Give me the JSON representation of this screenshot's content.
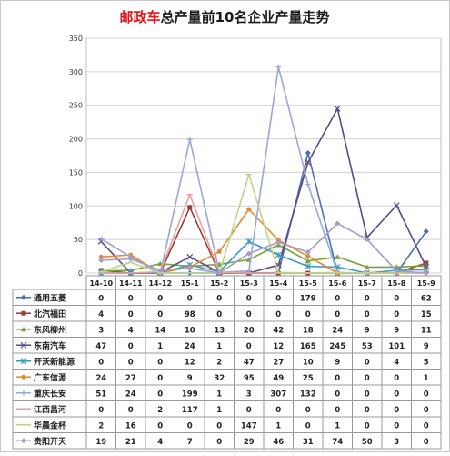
{
  "chart_data": {
    "type": "line",
    "title_part1": "邮政车",
    "title_part2": "总产量前10名企业产量走势",
    "title_part1_color": "#e4141b",
    "title_part2_color": "#1a1a1a",
    "ylim": [
      0,
      350
    ],
    "yticks": [
      0,
      50,
      100,
      150,
      200,
      250,
      300,
      350
    ],
    "grid": true,
    "categories": [
      "14-10",
      "14-11",
      "14-12",
      "15-1",
      "15-2",
      "15-3",
      "15-4",
      "15-5",
      "15-6",
      "15-7",
      "15-8",
      "15-9"
    ],
    "series": [
      {
        "name": "通用五菱",
        "color": "#4a6fb5",
        "marker": "diamond",
        "values": [
          0,
          0,
          0,
          0,
          0,
          0,
          0,
          179,
          0,
          0,
          0,
          62
        ]
      },
      {
        "name": "北汽福田",
        "color": "#a33a38",
        "marker": "square",
        "values": [
          4,
          0,
          0,
          98,
          0,
          0,
          0,
          0,
          0,
          0,
          0,
          15
        ]
      },
      {
        "name": "东风柳州",
        "color": "#7aa13a",
        "marker": "triangle",
        "values": [
          3,
          4,
          14,
          10,
          13,
          20,
          42,
          18,
          24,
          9,
          9,
          11
        ]
      },
      {
        "name": "东南汽车",
        "color": "#5b4a87",
        "marker": "x",
        "values": [
          47,
          0,
          1,
          24,
          1,
          0,
          12,
          165,
          245,
          53,
          101,
          9
        ]
      },
      {
        "name": "开沃新能源",
        "color": "#3c9ac4",
        "marker": "star",
        "values": [
          0,
          0,
          0,
          12,
          2,
          47,
          27,
          10,
          9,
          0,
          4,
          5
        ]
      },
      {
        "name": "广东信源",
        "color": "#e28a30",
        "marker": "circle",
        "values": [
          24,
          27,
          0,
          9,
          32,
          95,
          49,
          25,
          0,
          0,
          0,
          1
        ]
      },
      {
        "name": "重庆长安",
        "color": "#98a8d6",
        "marker": "plus",
        "values": [
          51,
          24,
          0,
          199,
          1,
          3,
          307,
          132,
          0,
          0,
          0,
          0
        ]
      },
      {
        "name": "江西昌河",
        "color": "#e8a19f",
        "marker": "minus",
        "values": [
          0,
          0,
          2,
          117,
          1,
          0,
          0,
          0,
          0,
          0,
          0,
          0
        ]
      },
      {
        "name": "华晨金杯",
        "color": "#bcd48a",
        "marker": "minus",
        "values": [
          2,
          16,
          0,
          0,
          0,
          147,
          1,
          0,
          1,
          0,
          0,
          0
        ]
      },
      {
        "name": "贵阳开天",
        "color": "#a99bc4",
        "marker": "diamond",
        "values": [
          19,
          21,
          4,
          7,
          0,
          29,
          46,
          31,
          74,
          50,
          3,
          0
        ]
      }
    ]
  }
}
